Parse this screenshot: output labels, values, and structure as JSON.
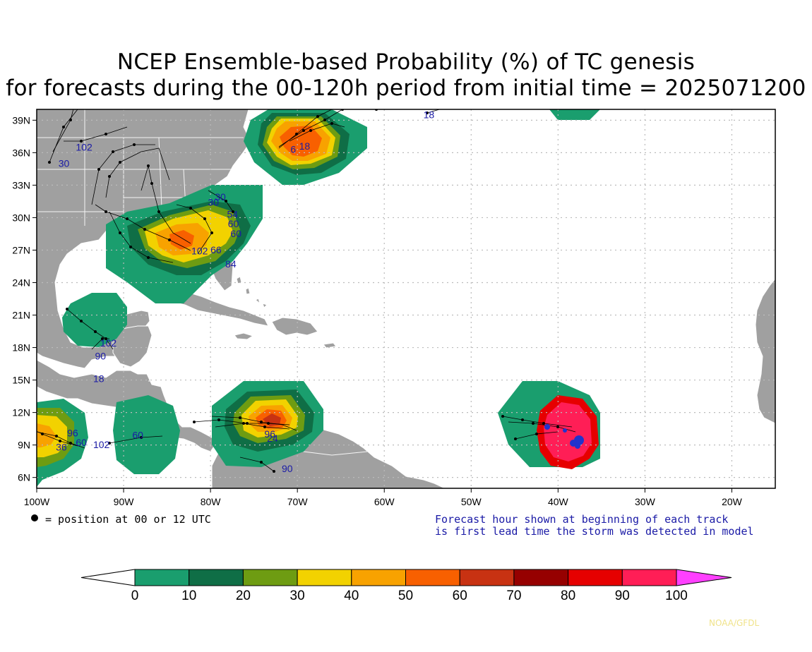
{
  "title_line1": "NCEP Ensemble-based Probability (%) of TC genesis",
  "title_line2": "for forecasts during the 00-120h period from initial time = 2025071200",
  "map": {
    "lon_range": [
      -100,
      -15
    ],
    "lat_range": [
      5,
      40
    ],
    "lon_ticks": [
      "100W",
      "90W",
      "80W",
      "70W",
      "60W",
      "50W",
      "40W",
      "30W",
      "20W"
    ],
    "lat_ticks": [
      "39N",
      "36N",
      "33N",
      "30N",
      "27N",
      "24N",
      "21N",
      "18N",
      "15N",
      "12N",
      "9N",
      "6N"
    ],
    "colors": {
      "ocean": "#ffffff",
      "land": "#a0a0a0",
      "grid": "#bbbbbb",
      "label": "#1a1aa6"
    }
  },
  "legend_note": "= position at 00 or 12 UTC",
  "forecast_note_line1": "Forecast hour shown at beginning of each track",
  "forecast_note_line2": "is first lead time the storm was detected in model",
  "colorbar": {
    "colors": [
      "#1a9e6e",
      "#0f6e46",
      "#6e9c12",
      "#f2d200",
      "#f8a200",
      "#f86000",
      "#c83212",
      "#960000",
      "#e60000",
      "#ff1e56",
      "#ff40ff"
    ],
    "labels": [
      "0",
      "10",
      "20",
      "30",
      "40",
      "50",
      "60",
      "70",
      "80",
      "90",
      "100"
    ]
  },
  "track_labels": [
    {
      "text": "18",
      "lon": -55.5,
      "lat": 39.2
    },
    {
      "text": "102",
      "lon": -95.5,
      "lat": 36.2
    },
    {
      "text": "30",
      "lon": -97.5,
      "lat": 34.7
    },
    {
      "text": "6",
      "lon": -70.8,
      "lat": 36.0
    },
    {
      "text": "18",
      "lon": -69.8,
      "lat": 36.3
    },
    {
      "text": "30",
      "lon": -79.5,
      "lat": 31.6
    },
    {
      "text": "30",
      "lon": -80.3,
      "lat": 31.1
    },
    {
      "text": "54",
      "lon": -78.1,
      "lat": 30.0
    },
    {
      "text": "60",
      "lon": -77.7,
      "lat": 28.2
    },
    {
      "text": "60",
      "lon": -78.0,
      "lat": 29.1
    },
    {
      "text": "102",
      "lon": -82.2,
      "lat": 26.6
    },
    {
      "text": "66",
      "lon": -80.0,
      "lat": 26.7
    },
    {
      "text": "84",
      "lon": -78.3,
      "lat": 25.4
    },
    {
      "text": "102",
      "lon": -92.7,
      "lat": 18.1
    },
    {
      "text": "90",
      "lon": -93.3,
      "lat": 16.9
    },
    {
      "text": "18",
      "lon": -93.5,
      "lat": 14.8
    },
    {
      "text": "60",
      "lon": -89.0,
      "lat": 9.6
    },
    {
      "text": "96",
      "lon": -73.8,
      "lat": 9.7
    },
    {
      "text": "24",
      "lon": -73.5,
      "lat": 9.3
    },
    {
      "text": "90",
      "lon": -71.8,
      "lat": 6.5
    },
    {
      "text": "36",
      "lon": -97.8,
      "lat": 8.5
    },
    {
      "text": "60",
      "lon": -95.5,
      "lat": 8.9
    },
    {
      "text": "102",
      "lon": -93.5,
      "lat": 8.7
    },
    {
      "text": "96",
      "lon": -96.5,
      "lat": 9.8
    }
  ]
}
